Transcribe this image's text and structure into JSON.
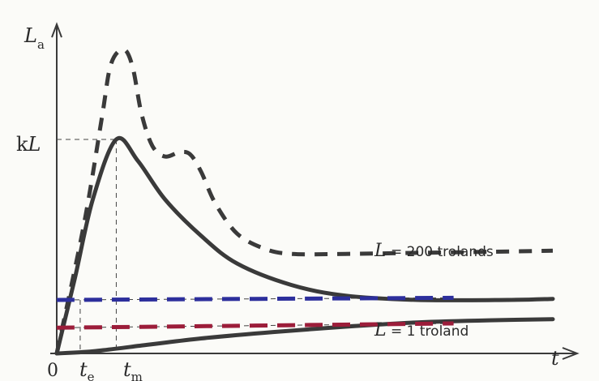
{
  "chart_data": {
    "type": "line",
    "y_axis": {
      "symbol": "L",
      "subscript": "a"
    },
    "x_axis": {
      "symbol": "t"
    },
    "origin_label": "0",
    "y_marks": [
      {
        "label": "k",
        "symbol": "L"
      }
    ],
    "x_marks": [
      {
        "symbol": "t",
        "subscript": "e"
      },
      {
        "symbol": "t",
        "subscript": "m"
      }
    ],
    "series": [
      {
        "id": "L200",
        "label_symbol": "L",
        "label_text": " = 200 trolands",
        "style": "solid",
        "color": "#3a3a3a",
        "points": [
          [
            0,
            0.0
          ],
          [
            0.1,
            0.35
          ],
          [
            0.2,
            0.72
          ],
          [
            0.33,
            1.0
          ],
          [
            0.45,
            0.9
          ],
          [
            0.6,
            0.72
          ],
          [
            0.8,
            0.55
          ],
          [
            1.0,
            0.42
          ],
          [
            1.3,
            0.32
          ],
          [
            1.6,
            0.27
          ],
          [
            2.0,
            0.25
          ],
          [
            2.5,
            0.25
          ],
          [
            2.75,
            0.255
          ]
        ]
      },
      {
        "id": "L1",
        "label_symbol": "L",
        "label_text": " = 1 troland",
        "style": "solid",
        "color": "#3a3a3a",
        "points": [
          [
            0,
            0.0
          ],
          [
            0.2,
            0.01
          ],
          [
            0.5,
            0.04
          ],
          [
            0.8,
            0.07
          ],
          [
            1.2,
            0.1
          ],
          [
            1.6,
            0.125
          ],
          [
            2.0,
            0.145
          ],
          [
            2.4,
            0.155
          ],
          [
            2.75,
            0.16
          ]
        ]
      },
      {
        "id": "dashed",
        "style": "dashed",
        "color": "#3a3a3a",
        "points": [
          [
            0,
            0.0
          ],
          [
            0.15,
            0.6
          ],
          [
            0.25,
            1.1
          ],
          [
            0.3,
            1.35
          ],
          [
            0.37,
            1.42
          ],
          [
            0.42,
            1.34
          ],
          [
            0.47,
            1.12
          ],
          [
            0.53,
            0.97
          ],
          [
            0.6,
            0.92
          ],
          [
            0.68,
            0.94
          ],
          [
            0.74,
            0.93
          ],
          [
            0.8,
            0.85
          ],
          [
            0.88,
            0.7
          ],
          [
            1.0,
            0.56
          ],
          [
            1.15,
            0.49
          ],
          [
            1.3,
            0.465
          ],
          [
            1.6,
            0.465
          ],
          [
            2.0,
            0.47
          ],
          [
            2.4,
            0.475
          ],
          [
            2.75,
            0.48
          ]
        ]
      },
      {
        "id": "blue-ref",
        "style": "dashed",
        "color": "#2d2f9c",
        "points": [
          [
            0,
            0.25
          ],
          [
            2.2,
            0.26
          ]
        ]
      },
      {
        "id": "red-ref",
        "style": "dashed",
        "color": "#9c1d3a",
        "points": [
          [
            0,
            0.12
          ],
          [
            2.2,
            0.14
          ]
        ]
      }
    ],
    "peak": {
      "t": 0.33,
      "value": 1.0
    },
    "te": 0.13,
    "xlim": [
      0,
      2.75
    ],
    "ylim": [
      0,
      1.5
    ],
    "grid": false
  }
}
